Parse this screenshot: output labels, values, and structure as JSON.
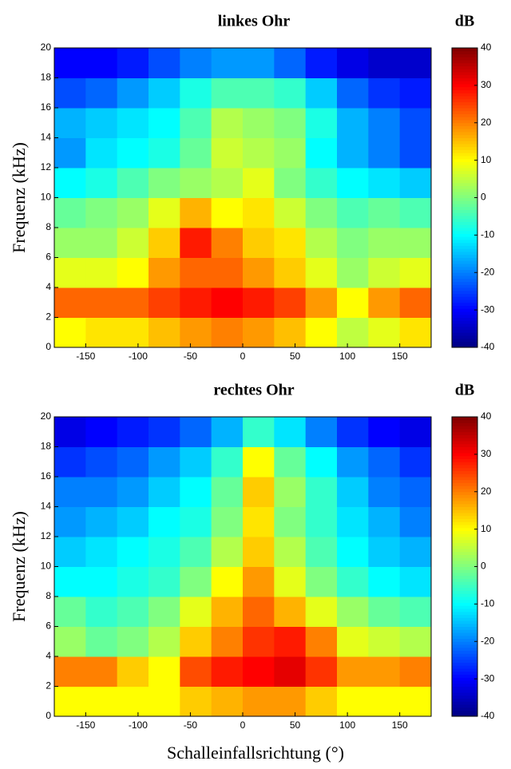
{
  "chart_data": [
    {
      "type": "heatmap",
      "title": "linkes Ohr",
      "ylabel": "Frequenz (kHz)",
      "colorbar_label": "dB",
      "x": [
        -165,
        -135,
        -105,
        -75,
        -45,
        -15,
        15,
        45,
        75,
        105,
        135,
        165
      ],
      "y": [
        1,
        3,
        5,
        7,
        9,
        11,
        13,
        15,
        17,
        19
      ],
      "z": [
        [
          10,
          12,
          12,
          15,
          18,
          20,
          18,
          15,
          10,
          5,
          8,
          12
        ],
        [
          22,
          22,
          22,
          25,
          28,
          30,
          28,
          25,
          18,
          10,
          18,
          22
        ],
        [
          8,
          8,
          10,
          18,
          22,
          22,
          18,
          14,
          8,
          2,
          6,
          8
        ],
        [
          2,
          2,
          6,
          14,
          28,
          20,
          14,
          12,
          4,
          0,
          2,
          2
        ],
        [
          -2,
          0,
          2,
          8,
          16,
          10,
          12,
          6,
          0,
          -4,
          -2,
          -4
        ],
        [
          -10,
          -8,
          -4,
          0,
          2,
          4,
          8,
          0,
          -6,
          -10,
          -12,
          -14
        ],
        [
          -18,
          -12,
          -10,
          -8,
          -2,
          6,
          4,
          2,
          -10,
          -16,
          -20,
          -24
        ],
        [
          -16,
          -14,
          -12,
          -10,
          -4,
          4,
          2,
          0,
          -8,
          -16,
          -20,
          -24
        ],
        [
          -24,
          -22,
          -18,
          -14,
          -8,
          -4,
          -4,
          -6,
          -14,
          -22,
          -26,
          -28
        ],
        [
          -30,
          -30,
          -28,
          -24,
          -20,
          -18,
          -18,
          -22,
          -28,
          -32,
          -34,
          -34
        ]
      ],
      "xlim": [
        -180,
        180
      ],
      "ylim": [
        0,
        20
      ],
      "zlim": [
        -40,
        40
      ],
      "xticks": [
        -150,
        -100,
        -50,
        0,
        50,
        100,
        150
      ],
      "yticks": [
        0,
        2,
        4,
        6,
        8,
        10,
        12,
        14,
        16,
        18,
        20
      ],
      "zticks": [
        -40,
        -30,
        -20,
        -10,
        0,
        10,
        20,
        30,
        40
      ],
      "colormap": "jet"
    },
    {
      "type": "heatmap",
      "title": "rechtes Ohr",
      "ylabel": "Frequenz (kHz)",
      "colorbar_label": "dB",
      "xlabel": "Schalleinfallsrichtung (°)",
      "x": [
        -165,
        -135,
        -105,
        -75,
        -45,
        -15,
        15,
        45,
        75,
        105,
        135,
        165
      ],
      "y": [
        1,
        3,
        5,
        7,
        9,
        11,
        13,
        15,
        17,
        19
      ],
      "z": [
        [
          10,
          10,
          10,
          10,
          14,
          16,
          18,
          18,
          14,
          10,
          10,
          10
        ],
        [
          20,
          20,
          14,
          10,
          24,
          28,
          30,
          32,
          26,
          18,
          18,
          20
        ],
        [
          2,
          -2,
          0,
          4,
          14,
          20,
          26,
          28,
          20,
          8,
          6,
          4
        ],
        [
          -2,
          -6,
          -4,
          0,
          8,
          16,
          22,
          16,
          8,
          2,
          -2,
          -4
        ],
        [
          -10,
          -10,
          -8,
          -6,
          0,
          10,
          18,
          8,
          0,
          -6,
          -10,
          -12
        ],
        [
          -14,
          -12,
          -10,
          -8,
          -4,
          4,
          14,
          4,
          -4,
          -10,
          -14,
          -16
        ],
        [
          -18,
          -16,
          -14,
          -10,
          -8,
          0,
          12,
          0,
          -6,
          -12,
          -16,
          -20
        ],
        [
          -20,
          -20,
          -18,
          -14,
          -10,
          -2,
          14,
          2,
          -6,
          -14,
          -20,
          -22
        ],
        [
          -26,
          -24,
          -22,
          -18,
          -14,
          -6,
          10,
          -2,
          -10,
          -18,
          -22,
          -26
        ],
        [
          -32,
          -30,
          -28,
          -26,
          -22,
          -16,
          -6,
          -12,
          -20,
          -26,
          -30,
          -32
        ]
      ],
      "xlim": [
        -180,
        180
      ],
      "ylim": [
        0,
        20
      ],
      "zlim": [
        -40,
        40
      ],
      "xticks": [
        -150,
        -100,
        -50,
        0,
        50,
        100,
        150
      ],
      "yticks": [
        0,
        2,
        4,
        6,
        8,
        10,
        12,
        14,
        16,
        18,
        20
      ],
      "zticks": [
        -40,
        -30,
        -20,
        -10,
        0,
        10,
        20,
        30,
        40
      ],
      "colormap": "jet"
    }
  ]
}
